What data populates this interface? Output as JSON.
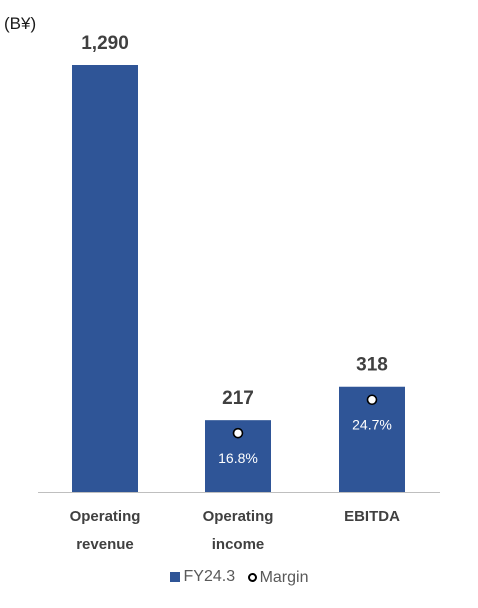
{
  "unit_label": "(B¥)",
  "colors": {
    "bar": "#2F5597",
    "axis": "#BFBFBF"
  },
  "chart_data": {
    "type": "bar",
    "categories": [
      [
        "Operating",
        "revenue"
      ],
      [
        "Operating",
        "income"
      ],
      [
        "EBITDA"
      ]
    ],
    "series": [
      {
        "name": "FY24.3",
        "values": [
          1290,
          217,
          318
        ],
        "value_labels": [
          "1,290",
          "217",
          "318"
        ]
      }
    ],
    "margin": {
      "name": "Margin",
      "values": [
        null,
        16.8,
        24.7
      ],
      "labels": [
        "",
        "16.8%",
        "24.7%"
      ]
    },
    "ylim": [
      0,
      1290
    ],
    "grid": false,
    "legend": "bottom"
  }
}
